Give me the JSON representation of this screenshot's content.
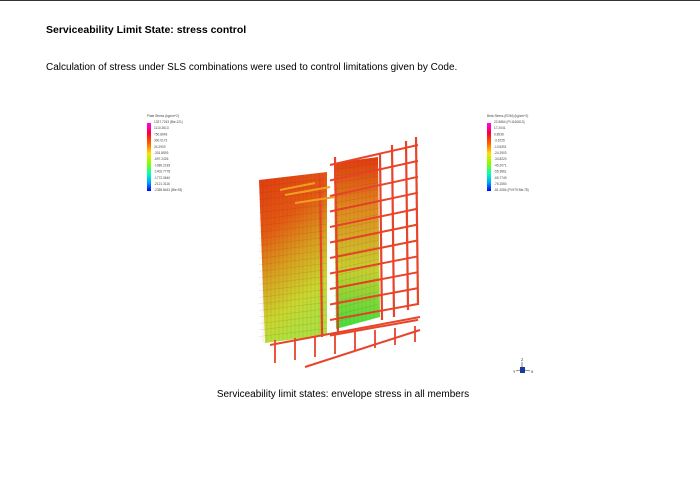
{
  "heading": "Serviceability Limit State: stress control",
  "paragraph": "Calculation of stress under SLS combinations were used to control limitations given by Code.",
  "caption": "Serviceability limit states: envelope stress in all members",
  "figure": {
    "legend_left": {
      "title": "Plate Stress (kg/cm^2)",
      "labels": [
        "1337.7243 (Ble:121)",
        "1110.2613",
        "750.8043",
        "300.0173",
        "24.2903",
        "-301.8593",
        "-697.2426",
        "-1080.2183",
        "-1402.7778",
        "-1772.0640",
        "-2121.3116",
        "-2355.8461 (Ble:93)"
      ]
    },
    "legend_right": {
      "title": "Beta Stress (EDM) (kg/cm^2)",
      "labels": [
        "22.6864 (PI:1160613)",
        "17.2041",
        "6.8936",
        "-3.6725",
        "-13.8391",
        "-24.2903",
        "-34.8220",
        "-45.2071",
        "-55.3861",
        "-65.7749",
        "-76.1550",
        "-81.2084 (PI:979 Ble:78)"
      ]
    },
    "axis_labels": [
      "Z",
      "Y",
      "X"
    ],
    "colors": {
      "max": "#ff00ff",
      "high": "#ff2a00",
      "mid": "#ffff00",
      "low": "#00ff00",
      "min": "#0000ff",
      "frame": "#e8442a"
    }
  }
}
